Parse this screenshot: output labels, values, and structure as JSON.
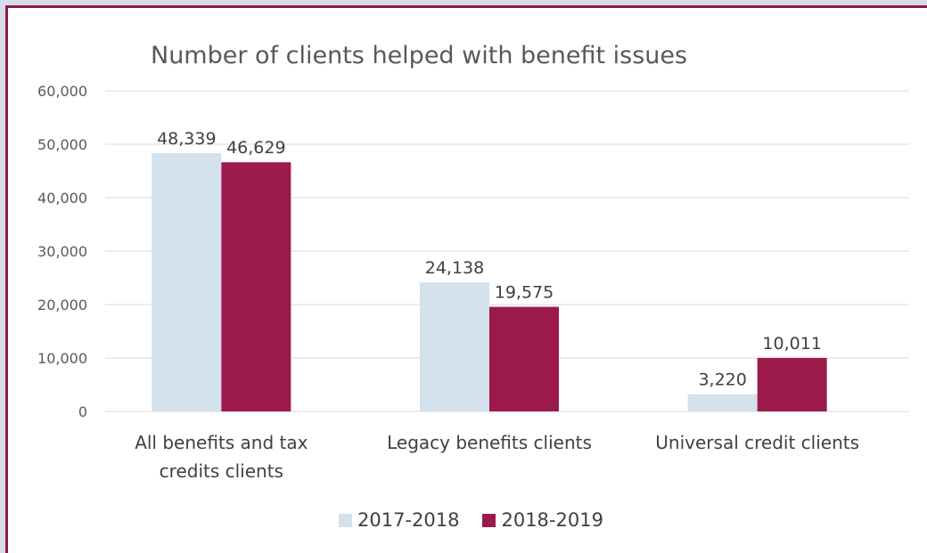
{
  "colors": {
    "series_2017": "#d2e1ec",
    "series_2018": "#9c1a4b",
    "frame": "#8b1a4a",
    "grid": "#d9d9d9",
    "text": "#595959"
  },
  "chart_data": {
    "type": "bar",
    "title": "Number of clients helped with benefit issues",
    "categories": [
      [
        "All benefits and tax",
        "credits clients"
      ],
      [
        "Legacy benefits clients"
      ],
      [
        "Universal credit clients"
      ]
    ],
    "series": [
      {
        "name": "2017-2018",
        "values": [
          48339,
          24138,
          3220
        ],
        "labels": [
          "48,339",
          "24,138",
          "3,220"
        ]
      },
      {
        "name": "2018-2019",
        "values": [
          46629,
          19575,
          10011
        ],
        "labels": [
          "46,629",
          "19,575",
          "10,011"
        ]
      }
    ],
    "ylim": [
      0,
      60000
    ],
    "yticks": [
      0,
      10000,
      20000,
      30000,
      40000,
      50000,
      60000
    ],
    "ytick_labels": [
      "0",
      "10,000",
      "20,000",
      "30,000",
      "40,000",
      "50,000",
      "60,000"
    ],
    "grid": true,
    "legend_position": "bottom"
  }
}
